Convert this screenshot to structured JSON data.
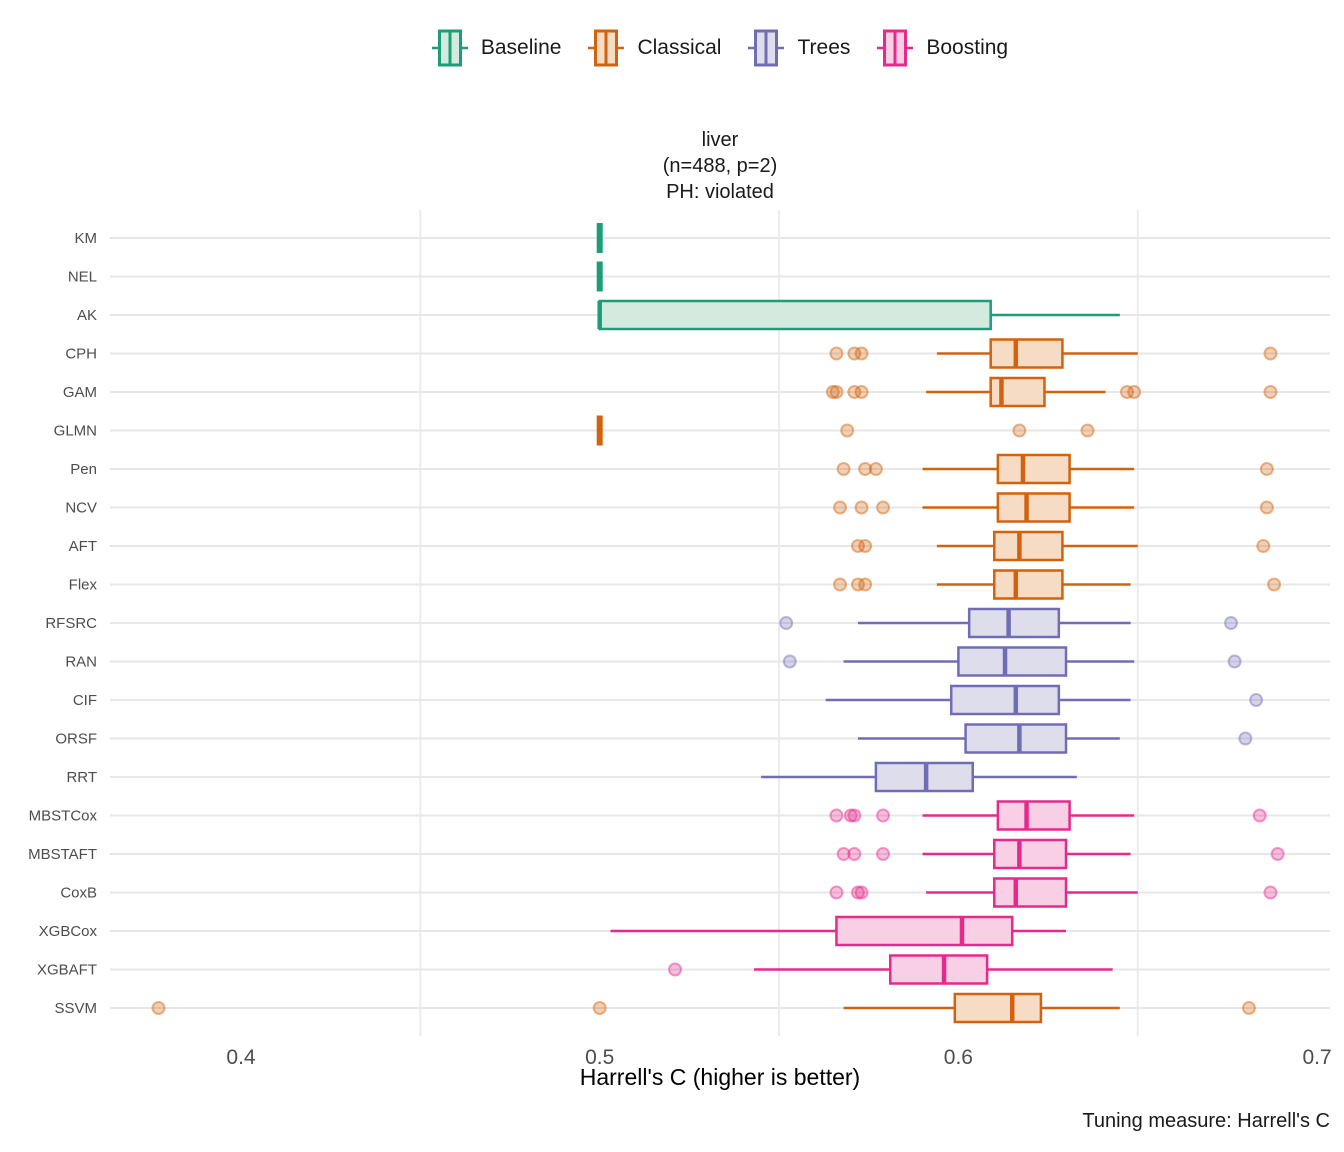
{
  "title": {
    "line1": "liver",
    "line2": "(n=488, p=2)",
    "line3": "PH: violated"
  },
  "caption": "Tuning measure: Harrell's C",
  "x_axis": {
    "label": "Harrell's C (higher is better)",
    "ticks": [
      0.4,
      0.5,
      0.6,
      0.7
    ],
    "minor_gridlines": [
      0.45,
      0.55,
      0.65
    ]
  },
  "legend": {
    "items": [
      {
        "label": "Baseline",
        "stroke": "#1B9E77",
        "fill": "#D4EADF"
      },
      {
        "label": "Classical",
        "stroke": "#D2620D",
        "fill": "#F7DCC5"
      },
      {
        "label": "Trees",
        "stroke": "#716DB4",
        "fill": "#DEDDEC"
      },
      {
        "label": "Boosting",
        "stroke": "#E6298C",
        "fill": "#F9CFE5"
      }
    ]
  },
  "colors": {
    "grid_horizontal": "#E7E7E7",
    "grid_vertical": "#ECECEC",
    "axis_text": "#4D4D4D"
  },
  "chart_data": {
    "type": "boxplot",
    "orientation": "horizontal",
    "title": "liver (n=488, p=2) PH: violated",
    "xlabel": "Harrell's C (higher is better)",
    "xlim": [
      0.363,
      0.704
    ],
    "xticks": [
      0.4,
      0.5,
      0.6,
      0.7
    ],
    "legend_position": "top",
    "grid": "minor-x and category-y",
    "groups": {
      "Baseline": {
        "stroke": "#1B9E77",
        "fill": "#D4EADF"
      },
      "Classical": {
        "stroke": "#D2620D",
        "fill": "#F7DCC5"
      },
      "Trees": {
        "stroke": "#716DB4",
        "fill": "#DEDDEC"
      },
      "Boosting": {
        "stroke": "#E6298C",
        "fill": "#F9CFE5"
      }
    },
    "models": [
      {
        "name": "KM",
        "group": "Baseline",
        "whisker_low": 0.5,
        "q1": 0.5,
        "median": 0.5,
        "q3": 0.5,
        "whisker_high": 0.5,
        "outliers": []
      },
      {
        "name": "NEL",
        "group": "Baseline",
        "whisker_low": 0.5,
        "q1": 0.5,
        "median": 0.5,
        "q3": 0.5,
        "whisker_high": 0.5,
        "outliers": []
      },
      {
        "name": "AK",
        "group": "Baseline",
        "whisker_low": 0.5,
        "q1": 0.5,
        "median": 0.5,
        "q3": 0.609,
        "whisker_high": 0.645,
        "outliers": []
      },
      {
        "name": "CPH",
        "group": "Classical",
        "whisker_low": 0.594,
        "q1": 0.609,
        "median": 0.616,
        "q3": 0.629,
        "whisker_high": 0.65,
        "outliers": [
          0.566,
          0.571,
          0.573,
          0.687
        ]
      },
      {
        "name": "GAM",
        "group": "Classical",
        "whisker_low": 0.591,
        "q1": 0.609,
        "median": 0.612,
        "q3": 0.624,
        "whisker_high": 0.641,
        "outliers": [
          0.565,
          0.566,
          0.571,
          0.573,
          0.647,
          0.649,
          0.687
        ]
      },
      {
        "name": "GLMN",
        "group": "Classical",
        "whisker_low": 0.5,
        "q1": 0.5,
        "median": 0.5,
        "q3": 0.5,
        "whisker_high": 0.5,
        "outliers": [
          0.569,
          0.617,
          0.636
        ]
      },
      {
        "name": "Pen",
        "group": "Classical",
        "whisker_low": 0.59,
        "q1": 0.611,
        "median": 0.618,
        "q3": 0.631,
        "whisker_high": 0.649,
        "outliers": [
          0.568,
          0.574,
          0.577,
          0.686
        ]
      },
      {
        "name": "NCV",
        "group": "Classical",
        "whisker_low": 0.59,
        "q1": 0.611,
        "median": 0.619,
        "q3": 0.631,
        "whisker_high": 0.649,
        "outliers": [
          0.567,
          0.573,
          0.579,
          0.686
        ]
      },
      {
        "name": "AFT",
        "group": "Classical",
        "whisker_low": 0.594,
        "q1": 0.61,
        "median": 0.617,
        "q3": 0.629,
        "whisker_high": 0.65,
        "outliers": [
          0.572,
          0.574,
          0.685
        ]
      },
      {
        "name": "Flex",
        "group": "Classical",
        "whisker_low": 0.594,
        "q1": 0.61,
        "median": 0.616,
        "q3": 0.629,
        "whisker_high": 0.648,
        "outliers": [
          0.567,
          0.572,
          0.574,
          0.688
        ]
      },
      {
        "name": "RFSRC",
        "group": "Trees",
        "whisker_low": 0.572,
        "q1": 0.603,
        "median": 0.614,
        "q3": 0.628,
        "whisker_high": 0.648,
        "outliers": [
          0.552,
          0.676
        ]
      },
      {
        "name": "RAN",
        "group": "Trees",
        "whisker_low": 0.568,
        "q1": 0.6,
        "median": 0.613,
        "q3": 0.63,
        "whisker_high": 0.649,
        "outliers": [
          0.553,
          0.677
        ]
      },
      {
        "name": "CIF",
        "group": "Trees",
        "whisker_low": 0.563,
        "q1": 0.598,
        "median": 0.616,
        "q3": 0.628,
        "whisker_high": 0.648,
        "outliers": [
          0.683
        ]
      },
      {
        "name": "ORSF",
        "group": "Trees",
        "whisker_low": 0.572,
        "q1": 0.602,
        "median": 0.617,
        "q3": 0.63,
        "whisker_high": 0.645,
        "outliers": [
          0.68
        ]
      },
      {
        "name": "RRT",
        "group": "Trees",
        "whisker_low": 0.545,
        "q1": 0.577,
        "median": 0.591,
        "q3": 0.604,
        "whisker_high": 0.633,
        "outliers": []
      },
      {
        "name": "MBSTCox",
        "group": "Boosting",
        "whisker_low": 0.59,
        "q1": 0.611,
        "median": 0.619,
        "q3": 0.631,
        "whisker_high": 0.649,
        "outliers": [
          0.566,
          0.57,
          0.571,
          0.579,
          0.684
        ]
      },
      {
        "name": "MBSTAFT",
        "group": "Boosting",
        "whisker_low": 0.59,
        "q1": 0.61,
        "median": 0.617,
        "q3": 0.63,
        "whisker_high": 0.648,
        "outliers": [
          0.568,
          0.571,
          0.579,
          0.689
        ]
      },
      {
        "name": "CoxB",
        "group": "Boosting",
        "whisker_low": 0.591,
        "q1": 0.61,
        "median": 0.616,
        "q3": 0.63,
        "whisker_high": 0.65,
        "outliers": [
          0.566,
          0.572,
          0.573,
          0.687
        ]
      },
      {
        "name": "XGBCox",
        "group": "Boosting",
        "whisker_low": 0.503,
        "q1": 0.566,
        "median": 0.601,
        "q3": 0.615,
        "whisker_high": 0.63,
        "outliers": []
      },
      {
        "name": "XGBAFT",
        "group": "Boosting",
        "whisker_low": 0.543,
        "q1": 0.581,
        "median": 0.596,
        "q3": 0.608,
        "whisker_high": 0.643,
        "outliers": [
          0.521
        ]
      },
      {
        "name": "SSVM",
        "group": "Classical",
        "whisker_low": 0.568,
        "q1": 0.599,
        "median": 0.615,
        "q3": 0.623,
        "whisker_high": 0.645,
        "outliers": [
          0.377,
          0.5,
          0.681
        ]
      }
    ]
  }
}
